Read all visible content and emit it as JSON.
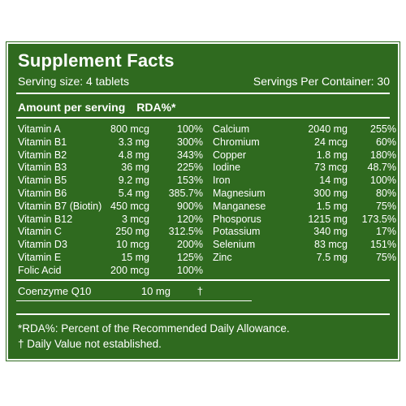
{
  "title": "Supplement Facts",
  "serving_size": "Serving size: 4 tablets",
  "servings_per_container": "Servings Per Container: 30",
  "amount_header": "Amount per serving",
  "rda_header": "RDA%*",
  "left_nutrients": [
    {
      "name": "Vitamin A",
      "amount": "800 mcg",
      "rda": "100%"
    },
    {
      "name": "Vitamin B1",
      "amount": "3.3 mg",
      "rda": "300%"
    },
    {
      "name": "Vitamin B2",
      "amount": "4.8 mg",
      "rda": "343%"
    },
    {
      "name": "Vitamin B3",
      "amount": "36 mg",
      "rda": "225%"
    },
    {
      "name": "Vitamin B5",
      "amount": "9.2 mg",
      "rda": "153%"
    },
    {
      "name": "Vitamin B6",
      "amount": "5.4 mg",
      "rda": "385.7%"
    },
    {
      "name": "Vitamin B7 (Biotin)",
      "amount": "450 mcg",
      "rda": "900%"
    },
    {
      "name": "Vitamin B12",
      "amount": "3 mcg",
      "rda": "120%"
    },
    {
      "name": "Vitamin C",
      "amount": "250 mg",
      "rda": "312.5%"
    },
    {
      "name": "Vitamin D3",
      "amount": "10 mcg",
      "rda": "200%"
    },
    {
      "name": "Vitamin E",
      "amount": "15 mg",
      "rda": "125%"
    },
    {
      "name": "Folic Acid",
      "amount": "200 mcg",
      "rda": "100%"
    }
  ],
  "right_nutrients": [
    {
      "name": "Calcium",
      "amount": "2040 mg",
      "rda": "255%"
    },
    {
      "name": "Chromium",
      "amount": "24 mcg",
      "rda": "60%"
    },
    {
      "name": "Copper",
      "amount": "1.8 mg",
      "rda": "180%"
    },
    {
      "name": "Iodine",
      "amount": "73 mcg",
      "rda": "48.7%"
    },
    {
      "name": "Iron",
      "amount": "14 mg",
      "rda": "100%"
    },
    {
      "name": "Magnesium",
      "amount": "300 mg",
      "rda": "80%"
    },
    {
      "name": "Manganese",
      "amount": "1.5 mg",
      "rda": "75%"
    },
    {
      "name": "Phosporus",
      "amount": "1215 mg",
      "rda": "173.5%"
    },
    {
      "name": "Potassium",
      "amount": "340 mg",
      "rda": "17%"
    },
    {
      "name": "Selenium",
      "amount": "83 mcg",
      "rda": "151%"
    },
    {
      "name": "Zinc",
      "amount": "7.5 mg",
      "rda": "75%"
    }
  ],
  "coenzyme": {
    "name": "Coenzyme Q10",
    "amount": "10 mg",
    "rda": "†"
  },
  "footnote_rda": "*RDA%: Percent of the Recommended Daily Allowance.",
  "footnote_dagger": "† Daily Value not established.",
  "colors": {
    "panel_green": "#2f6a1f",
    "text": "#ffffff"
  }
}
